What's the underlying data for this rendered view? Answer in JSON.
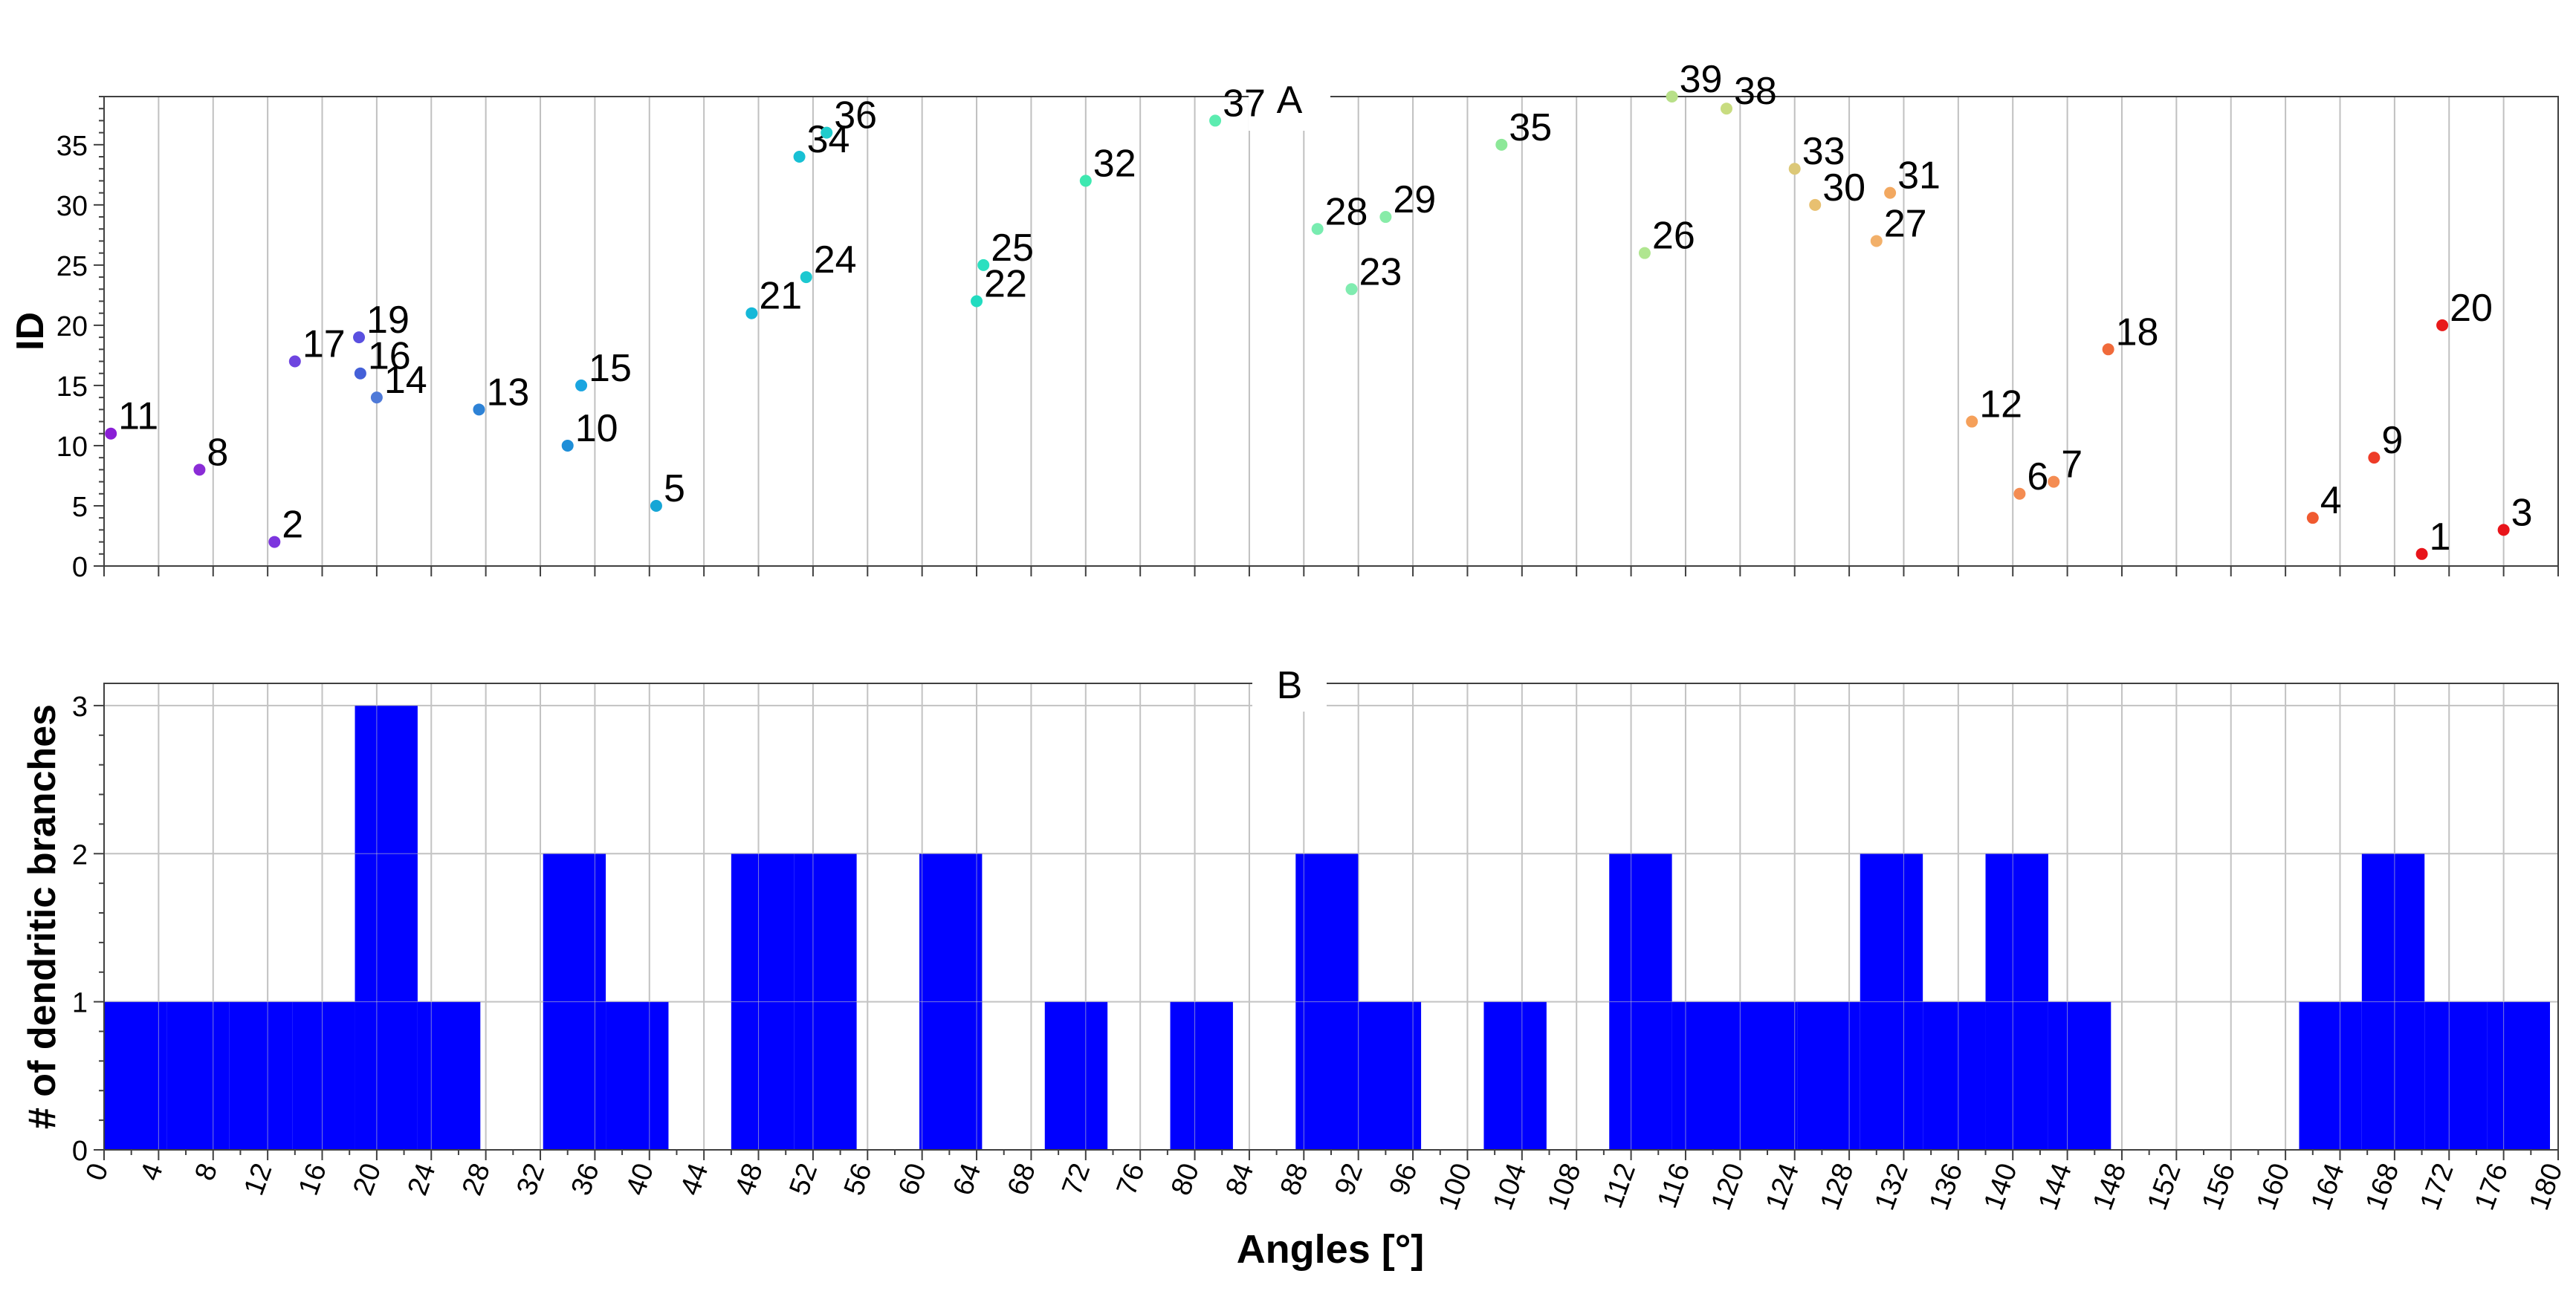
{
  "chart_data": [
    {
      "type": "scatter",
      "panel_label": "A",
      "ylabel": "ID",
      "xlim": [
        0,
        180
      ],
      "ylim": [
        0,
        39
      ],
      "yticks": [
        0,
        5,
        10,
        15,
        20,
        25,
        30,
        35
      ],
      "grid": "vertical lines every 4°",
      "point_color_scale": "rainbow by angle (purple → blue → cyan → green → yellow → orange → red)",
      "points": [
        {
          "id": "1",
          "x": 170,
          "y": 1,
          "color": "#e8141a"
        },
        {
          "id": "2",
          "x": 12.5,
          "y": 2,
          "color": "#7c35de"
        },
        {
          "id": "3",
          "x": 176,
          "y": 3,
          "color": "#e8141a"
        },
        {
          "id": "4",
          "x": 162,
          "y": 4,
          "color": "#f05a30"
        },
        {
          "id": "5",
          "x": 40.5,
          "y": 5,
          "color": "#16a6d6"
        },
        {
          "id": "6",
          "x": 140.5,
          "y": 6,
          "color": "#f48c52"
        },
        {
          "id": "7",
          "x": 143,
          "y": 7,
          "color": "#f48c52"
        },
        {
          "id": "8",
          "x": 7,
          "y": 8,
          "color": "#8a2cd6"
        },
        {
          "id": "9",
          "x": 166.5,
          "y": 9,
          "color": "#ee3c28"
        },
        {
          "id": "10",
          "x": 34,
          "y": 10,
          "color": "#1e8ed8"
        },
        {
          "id": "11",
          "x": 0.5,
          "y": 11,
          "color": "#8a1fd6"
        },
        {
          "id": "12",
          "x": 137,
          "y": 12,
          "color": "#f5a05a"
        },
        {
          "id": "13",
          "x": 27.5,
          "y": 13,
          "color": "#2d82d6"
        },
        {
          "id": "14",
          "x": 20,
          "y": 14,
          "color": "#4f7ad8"
        },
        {
          "id": "15",
          "x": 35,
          "y": 15,
          "color": "#1aa5e0"
        },
        {
          "id": "16",
          "x": 18.8,
          "y": 16,
          "color": "#4460d8"
        },
        {
          "id": "17",
          "x": 14,
          "y": 17,
          "color": "#6e45e0"
        },
        {
          "id": "18",
          "x": 147,
          "y": 18,
          "color": "#f06a3a"
        },
        {
          "id": "19",
          "x": 18.7,
          "y": 19,
          "color": "#5a50e0"
        },
        {
          "id": "20",
          "x": 171.5,
          "y": 20,
          "color": "#e81a1a"
        },
        {
          "id": "21",
          "x": 47.5,
          "y": 21,
          "color": "#15b8d8"
        },
        {
          "id": "22",
          "x": 64,
          "y": 22,
          "color": "#22dcc0"
        },
        {
          "id": "23",
          "x": 91.5,
          "y": 23,
          "color": "#80ecb0"
        },
        {
          "id": "24",
          "x": 51.5,
          "y": 24,
          "color": "#1dc8d0"
        },
        {
          "id": "25",
          "x": 64.5,
          "y": 25,
          "color": "#2ae0c0"
        },
        {
          "id": "26",
          "x": 113,
          "y": 26,
          "color": "#b0e690"
        },
        {
          "id": "27",
          "x": 130,
          "y": 27,
          "color": "#f2b06a"
        },
        {
          "id": "28",
          "x": 89,
          "y": 28,
          "color": "#78ecb0"
        },
        {
          "id": "29",
          "x": 94,
          "y": 29,
          "color": "#88eca8"
        },
        {
          "id": "30",
          "x": 125.5,
          "y": 30,
          "color": "#e8c070"
        },
        {
          "id": "31",
          "x": 131,
          "y": 31,
          "color": "#f2a860"
        },
        {
          "id": "32",
          "x": 72,
          "y": 32,
          "color": "#3ee8b0"
        },
        {
          "id": "33",
          "x": 124,
          "y": 33,
          "color": "#dcc878"
        },
        {
          "id": "34",
          "x": 51,
          "y": 34,
          "color": "#18c0d4"
        },
        {
          "id": "35",
          "x": 102.5,
          "y": 35,
          "color": "#8ce898"
        },
        {
          "id": "36",
          "x": 53,
          "y": 36,
          "color": "#20cccc"
        },
        {
          "id": "37",
          "x": 81.5,
          "y": 37,
          "color": "#5cecb0"
        },
        {
          "id": "38",
          "x": 119,
          "y": 38,
          "color": "#c8dc80"
        },
        {
          "id": "39",
          "x": 115,
          "y": 39,
          "color": "#b8e088"
        }
      ]
    },
    {
      "type": "bar",
      "panel_label": "B",
      "xlabel": "Angles [°]",
      "ylabel": "# of dendritic branches",
      "xlim": [
        0,
        180
      ],
      "ylim": [
        0,
        3
      ],
      "yticks": [
        0,
        1,
        2,
        3
      ],
      "xticks": [
        0,
        4,
        8,
        12,
        16,
        20,
        24,
        28,
        32,
        36,
        40,
        44,
        48,
        52,
        56,
        60,
        64,
        68,
        72,
        76,
        80,
        84,
        88,
        92,
        96,
        100,
        104,
        108,
        112,
        116,
        120,
        124,
        128,
        132,
        136,
        140,
        144,
        148,
        152,
        156,
        160,
        164,
        168,
        172,
        176,
        180
      ],
      "bin_width": 4.6,
      "bar_color": "#0000ff",
      "grid": true,
      "bins": [
        {
          "start": 0,
          "value": 1
        },
        {
          "start": 4.6,
          "value": 1
        },
        {
          "start": 9.2,
          "value": 1
        },
        {
          "start": 13.8,
          "value": 1
        },
        {
          "start": 18.4,
          "value": 3
        },
        {
          "start": 23,
          "value": 1
        },
        {
          "start": 27.6,
          "value": 0
        },
        {
          "start": 32.2,
          "value": 2
        },
        {
          "start": 36.8,
          "value": 1
        },
        {
          "start": 41.4,
          "value": 0
        },
        {
          "start": 46,
          "value": 2
        },
        {
          "start": 50.6,
          "value": 2
        },
        {
          "start": 55.2,
          "value": 0
        },
        {
          "start": 59.8,
          "value": 2
        },
        {
          "start": 64.4,
          "value": 0
        },
        {
          "start": 69,
          "value": 1
        },
        {
          "start": 73.6,
          "value": 0
        },
        {
          "start": 78.2,
          "value": 1
        },
        {
          "start": 82.8,
          "value": 0
        },
        {
          "start": 87.4,
          "value": 2
        },
        {
          "start": 92,
          "value": 1
        },
        {
          "start": 96.6,
          "value": 0
        },
        {
          "start": 101.2,
          "value": 1
        },
        {
          "start": 105.8,
          "value": 0
        },
        {
          "start": 110.4,
          "value": 2
        },
        {
          "start": 115,
          "value": 1
        },
        {
          "start": 119.6,
          "value": 1
        },
        {
          "start": 124.2,
          "value": 1
        },
        {
          "start": 128.8,
          "value": 2
        },
        {
          "start": 133.4,
          "value": 1
        },
        {
          "start": 138,
          "value": 2
        },
        {
          "start": 142.6,
          "value": 1
        },
        {
          "start": 147.2,
          "value": 0
        },
        {
          "start": 151.8,
          "value": 0
        },
        {
          "start": 156.4,
          "value": 0
        },
        {
          "start": 161,
          "value": 1
        },
        {
          "start": 165.6,
          "value": 2
        },
        {
          "start": 170.2,
          "value": 1
        },
        {
          "start": 174.8,
          "value": 1
        }
      ]
    }
  ]
}
